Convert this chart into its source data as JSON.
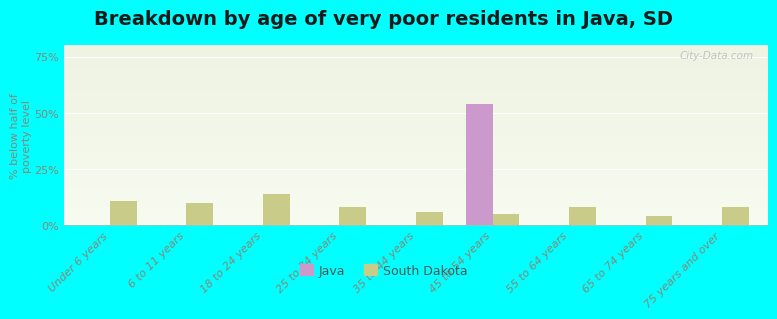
{
  "title": "Breakdown by age of very poor residents in Java, SD",
  "ylabel": "% below half of\npoverty level",
  "background_color": "#00ffff",
  "plot_bg_color_top": "#eef3e2",
  "plot_bg_color_bottom": "#f8fbf0",
  "categories": [
    "Under 6 years",
    "6 to 11 years",
    "18 to 24 years",
    "25 to 34 years",
    "35 to 44 years",
    "45 to 54 years",
    "55 to 64 years",
    "65 to 74 years",
    "75 years and over"
  ],
  "java_values": [
    0,
    0,
    0,
    0,
    0,
    54,
    0,
    0,
    0
  ],
  "sd_values": [
    11,
    10,
    14,
    8,
    6,
    5,
    8,
    4,
    8
  ],
  "java_color": "#cc99cc",
  "sd_color": "#c8cc88",
  "ylim": [
    0,
    80
  ],
  "yticks": [
    0,
    25,
    50,
    75
  ],
  "ytick_labels": [
    "0%",
    "25%",
    "50%",
    "75%"
  ],
  "bar_width": 0.35,
  "watermark": "City-Data.com",
  "legend_java": "Java",
  "legend_sd": "South Dakota",
  "title_fontsize": 14,
  "axis_label_fontsize": 8,
  "tick_fontsize": 8,
  "tick_color": "#888877",
  "title_color": "#1a1a1a"
}
